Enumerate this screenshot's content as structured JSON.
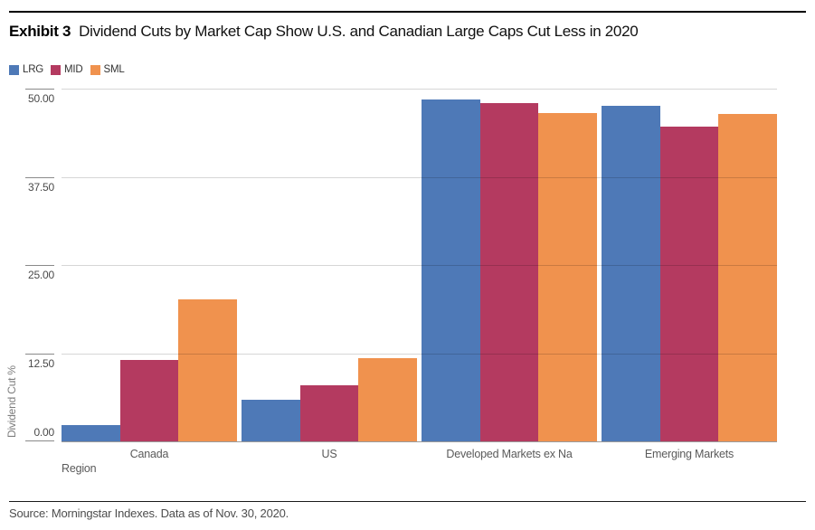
{
  "exhibit": {
    "label": "Exhibit 3",
    "title": "Dividend Cuts by Market Cap Show U.S. and Canadian Large Caps Cut Less in 2020"
  },
  "source": "Source: Morningstar Indexes. Data as of Nov. 30, 2020.",
  "colors": {
    "lrg_blue": "#4e79b7",
    "mid_crimson": "#b43a60",
    "sml_orange": "#f0924e",
    "gridline": "#d6d6d6",
    "axis_line": "#9b9b9b"
  },
  "chart_data": {
    "type": "bar",
    "title": "Dividend Cuts by Market Cap Show U.S. and Canadian Large Caps Cut Less in 2020",
    "xlabel": "Region",
    "ylabel": "Dividend Cut %",
    "ylim": [
      0,
      50
    ],
    "grid": true,
    "legend_position": "top-left",
    "yticks": [
      {
        "value": 50,
        "label": "50.00"
      },
      {
        "value": 37.5,
        "label": "37.50"
      },
      {
        "value": 25,
        "label": "25.00"
      },
      {
        "value": 12.5,
        "label": "12.50"
      },
      {
        "value": 0,
        "label": "0.00"
      }
    ],
    "categories": [
      "Canada",
      "US",
      "Developed Markets ex Na",
      "Emerging Markets"
    ],
    "series": [
      {
        "name": "LRG",
        "color": "#4e79b7",
        "values": [
          2.3,
          5.9,
          48.5,
          47.6
        ]
      },
      {
        "name": "MID",
        "color": "#b43a60",
        "values": [
          11.6,
          8.0,
          47.9,
          44.6
        ]
      },
      {
        "name": "SML",
        "color": "#f0924e",
        "values": [
          20.1,
          11.8,
          46.5,
          46.4
        ]
      }
    ]
  }
}
